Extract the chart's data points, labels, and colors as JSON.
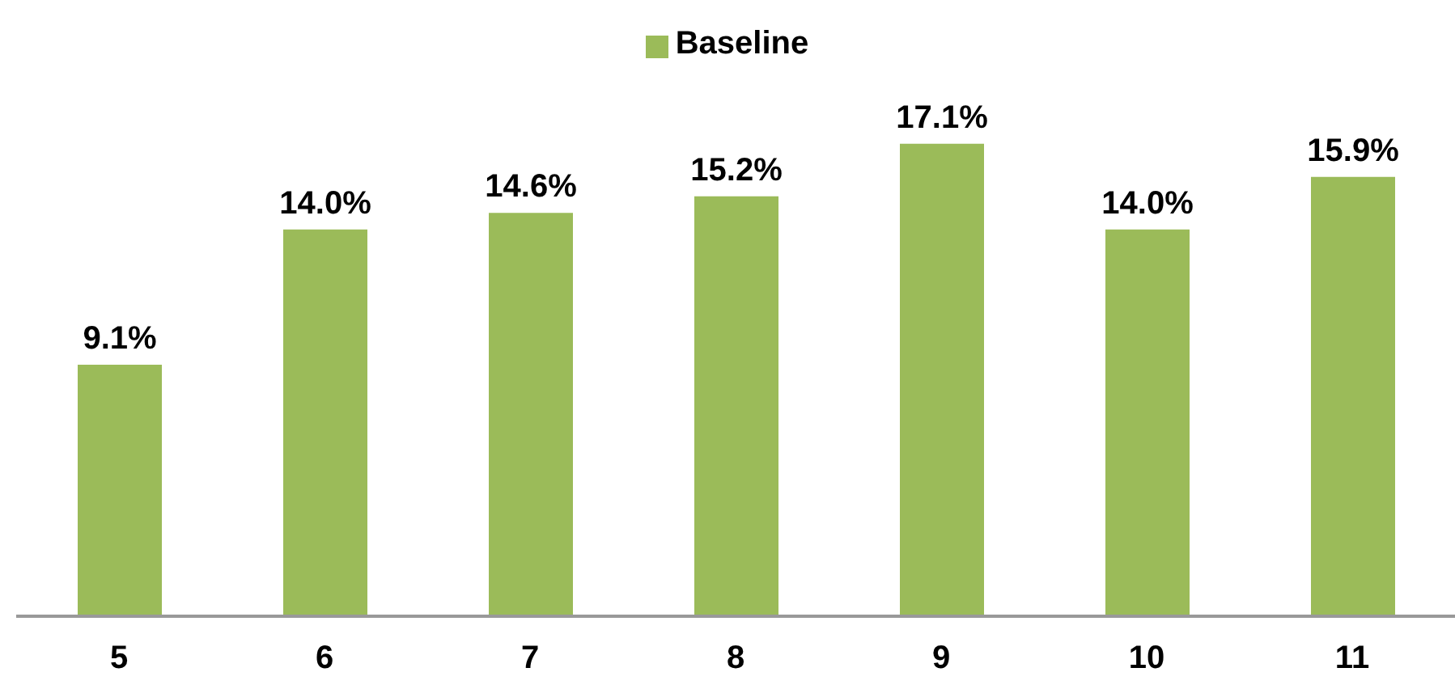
{
  "chart_data": {
    "type": "bar",
    "categories": [
      "5",
      "6",
      "7",
      "8",
      "9",
      "10",
      "11"
    ],
    "series": [
      {
        "name": "Baseline",
        "color": "#9bbb59",
        "values": [
          9.1,
          14.0,
          14.6,
          15.2,
          17.1,
          14.0,
          15.9
        ],
        "value_labels": [
          "9.1%",
          "14.0%",
          "14.6%",
          "15.2%",
          "17.1%",
          "14.0%",
          "15.9%"
        ]
      }
    ],
    "legend": "top",
    "grid": false
  }
}
